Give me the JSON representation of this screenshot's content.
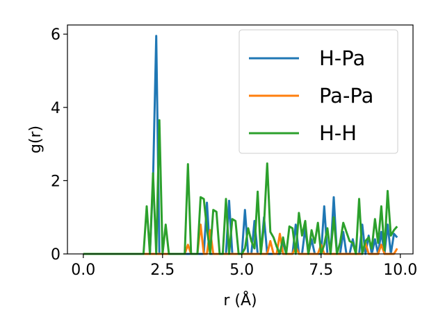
{
  "chart_data": {
    "type": "line",
    "xlabel": "r (Å)",
    "ylabel": "g(r)",
    "xlim": [
      -0.5,
      10.4
    ],
    "ylim": [
      0,
      6.25
    ],
    "xticks": [
      0.0,
      2.5,
      5.0,
      7.5,
      10.0
    ],
    "xtick_labels": [
      "0.0",
      "2.5",
      "5.0",
      "7.5",
      "10.0"
    ],
    "yticks": [
      0,
      2,
      4,
      6
    ],
    "ytick_labels": [
      "0",
      "2",
      "4",
      "6"
    ],
    "grid": false,
    "legend_position": "top-right",
    "series": [
      {
        "name": "H-Pa",
        "color": "#1f77b4",
        "x": [
          0.0,
          1.9,
          2.0,
          2.1,
          2.2,
          2.3,
          2.4,
          2.5,
          2.6,
          3.0,
          3.3,
          3.6,
          3.7,
          3.8,
          3.9,
          4.0,
          4.1,
          4.2,
          4.3,
          4.4,
          4.5,
          4.6,
          4.7,
          4.8,
          4.9,
          5.0,
          5.1,
          5.2,
          5.3,
          5.4,
          5.5,
          5.6,
          5.7,
          5.8,
          5.9,
          6.0,
          6.1,
          6.2,
          6.3,
          6.4,
          6.5,
          6.6,
          6.7,
          6.8,
          6.9,
          7.0,
          7.1,
          7.2,
          7.3,
          7.4,
          7.5,
          7.6,
          7.7,
          7.8,
          7.9,
          8.0,
          8.1,
          8.2,
          8.3,
          8.4,
          8.5,
          8.6,
          8.7,
          8.8,
          8.9,
          9.0,
          9.1,
          9.2,
          9.3,
          9.4,
          9.5,
          9.6,
          9.7,
          9.8,
          9.9
        ],
        "values": [
          0.0,
          0.0,
          0.0,
          0.0,
          2.0,
          5.95,
          0.0,
          0.0,
          0.0,
          0.0,
          0.0,
          0.0,
          0.0,
          0.0,
          1.4,
          0.0,
          0.0,
          0.0,
          0.0,
          0.0,
          0.0,
          1.45,
          0.0,
          0.0,
          0.0,
          0.0,
          1.2,
          0.0,
          0.0,
          0.9,
          0.0,
          0.0,
          1.0,
          0.0,
          0.0,
          0.0,
          0.0,
          0.0,
          0.3,
          0.0,
          0.0,
          0.0,
          0.8,
          0.0,
          0.0,
          0.7,
          0.0,
          0.4,
          0.0,
          0.0,
          0.0,
          1.3,
          0.0,
          0.0,
          1.55,
          0.0,
          0.0,
          0.6,
          0.0,
          0.0,
          0.4,
          0.0,
          0.0,
          0.8,
          0.0,
          0.5,
          0.0,
          0.4,
          0.0,
          0.6,
          0.0,
          0.8,
          0.0,
          0.55,
          0.45
        ]
      },
      {
        "name": "Pa-Pa",
        "color": "#ff7f0e",
        "x": [
          0.0,
          3.2,
          3.3,
          3.4,
          3.6,
          3.7,
          3.8,
          3.9,
          4.0,
          4.1,
          5.8,
          5.9,
          6.0,
          6.1,
          6.2,
          6.3,
          6.4,
          6.6,
          6.7,
          6.8,
          7.4,
          7.5,
          7.6,
          7.7,
          8.8,
          8.9,
          9.0,
          9.3,
          9.4,
          9.5,
          9.8,
          9.9
        ],
        "values": [
          0.0,
          0.0,
          0.25,
          0.0,
          0.0,
          0.8,
          0.0,
          0.0,
          0.65,
          0.0,
          0.0,
          0.35,
          0.0,
          0.0,
          0.55,
          0.0,
          0.0,
          0.0,
          0.2,
          0.0,
          0.0,
          0.25,
          0.0,
          0.0,
          0.0,
          0.3,
          0.0,
          0.0,
          0.25,
          0.0,
          0.0,
          0.15
        ]
      },
      {
        "name": "H-H",
        "color": "#2ca02c",
        "x": [
          0.0,
          1.9,
          2.0,
          2.1,
          2.2,
          2.3,
          2.4,
          2.5,
          2.6,
          2.7,
          2.8,
          3.2,
          3.3,
          3.4,
          3.5,
          3.6,
          3.7,
          3.8,
          3.9,
          4.0,
          4.1,
          4.2,
          4.3,
          4.4,
          4.5,
          4.6,
          4.7,
          4.8,
          4.9,
          5.0,
          5.1,
          5.2,
          5.3,
          5.4,
          5.5,
          5.6,
          5.7,
          5.8,
          5.9,
          6.0,
          6.1,
          6.2,
          6.3,
          6.4,
          6.5,
          6.6,
          6.7,
          6.8,
          6.9,
          7.0,
          7.1,
          7.2,
          7.3,
          7.4,
          7.5,
          7.6,
          7.7,
          7.8,
          7.9,
          8.0,
          8.1,
          8.2,
          8.3,
          8.4,
          8.5,
          8.6,
          8.7,
          8.8,
          8.9,
          9.0,
          9.1,
          9.2,
          9.3,
          9.4,
          9.5,
          9.6,
          9.7,
          9.8,
          9.9
        ],
        "values": [
          0.0,
          0.0,
          1.3,
          0.0,
          2.2,
          0.0,
          3.65,
          0.0,
          0.8,
          0.0,
          0.0,
          0.0,
          2.45,
          0.0,
          0.0,
          0.0,
          1.55,
          1.5,
          0.7,
          0.0,
          1.2,
          1.15,
          0.0,
          0.0,
          1.5,
          0.0,
          0.95,
          0.9,
          0.0,
          0.0,
          0.15,
          0.7,
          0.35,
          0.15,
          1.7,
          0.0,
          0.8,
          2.47,
          0.6,
          0.45,
          0.2,
          0.0,
          0.45,
          0.0,
          0.75,
          0.7,
          0.0,
          1.12,
          0.5,
          0.9,
          0.0,
          0.65,
          0.3,
          0.85,
          0.0,
          0.25,
          0.7,
          0.0,
          1.0,
          0.0,
          0.3,
          0.85,
          0.6,
          0.35,
          0.3,
          0.0,
          1.5,
          0.0,
          0.35,
          0.45,
          0.15,
          0.95,
          0.3,
          1.3,
          0.1,
          1.72,
          0.5,
          0.65,
          0.75
        ]
      }
    ]
  }
}
